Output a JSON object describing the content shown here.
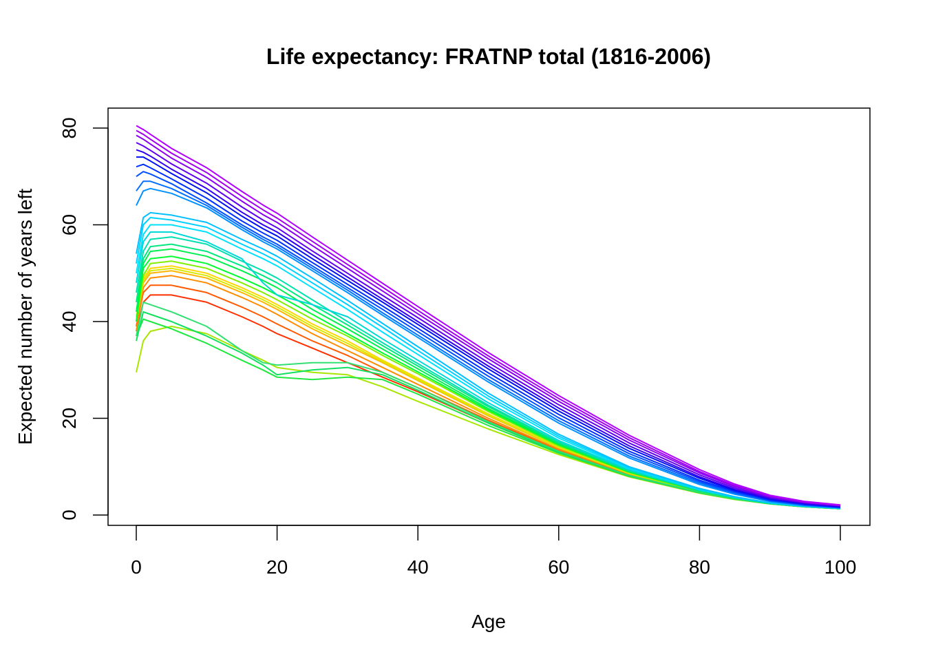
{
  "chart_data": {
    "type": "line",
    "title": "Life expectancy: FRATNP total (1816-2006)",
    "xlabel": "Age",
    "ylabel": "Expected number of years left",
    "xlim": [
      0,
      100
    ],
    "ylim": [
      0,
      80
    ],
    "x_ticks": [
      0,
      20,
      40,
      60,
      80,
      100
    ],
    "y_ticks": [
      0,
      20,
      40,
      60,
      80
    ],
    "x_tick_labels": [
      "0",
      "20",
      "40",
      "60",
      "80",
      "100"
    ],
    "y_tick_labels": [
      "0",
      "20",
      "40",
      "60",
      "80"
    ],
    "grid": false,
    "legend": "none",
    "x": [
      0,
      1,
      2,
      5,
      10,
      15,
      18,
      20,
      25,
      30,
      35,
      40,
      50,
      60,
      70,
      80,
      85,
      90,
      95,
      100
    ],
    "color_scale": "rainbow",
    "series": [
      {
        "color": "#ff3000",
        "values": [
          38,
          44,
          45.5,
          45.5,
          44,
          41,
          39,
          37.5,
          34.5,
          31.5,
          28.5,
          25.5,
          19,
          13,
          8.2,
          4.6,
          3.3,
          2.3,
          1.7,
          1.3
        ]
      },
      {
        "color": "#ff5a00",
        "values": [
          39,
          46,
          47.5,
          47.5,
          46,
          43,
          41,
          39.5,
          36,
          33,
          29.5,
          26.3,
          19.6,
          13.4,
          8.4,
          4.7,
          3.4,
          2.4,
          1.8,
          1.4
        ]
      },
      {
        "color": "#ff8c00",
        "values": [
          38,
          47,
          49,
          49.5,
          48,
          45,
          43,
          41.5,
          37.5,
          34,
          30.5,
          27,
          20,
          13.6,
          8.5,
          4.8,
          3.4,
          2.4,
          1.8,
          1.4
        ]
      },
      {
        "color": "#ffb400",
        "values": [
          40,
          48,
          50,
          50.5,
          49,
          46,
          44,
          42.5,
          38.5,
          35,
          31.5,
          27.8,
          20.5,
          13.9,
          8.6,
          4.8,
          3.4,
          2.4,
          1.8,
          1.4
        ]
      },
      {
        "color": "#ffd700",
        "values": [
          41,
          49,
          51,
          51.5,
          50,
          47,
          45,
          43.5,
          39.5,
          36,
          32,
          28.3,
          20.9,
          14.1,
          8.7,
          4.9,
          3.5,
          2.4,
          1.8,
          1.4
        ]
      },
      {
        "color": "#d8ea00",
        "values": [
          40,
          48.5,
          50.5,
          51,
          49.5,
          46.5,
          44.5,
          43,
          39,
          35.5,
          31.7,
          28,
          20.7,
          14,
          8.6,
          4.9,
          3.5,
          2.4,
          1.8,
          1.4
        ]
      },
      {
        "color": "#a8e600",
        "values": [
          29.5,
          36,
          38,
          39,
          37.5,
          34,
          32,
          30.5,
          29.5,
          29,
          26.5,
          23.5,
          17.8,
          12.5,
          7.9,
          4.5,
          3.2,
          2.3,
          1.7,
          1.3
        ]
      },
      {
        "color": "#80ee00",
        "values": [
          40,
          49.5,
          52,
          52.5,
          51,
          48,
          46,
          44.5,
          40.5,
          37,
          33,
          29.2,
          21.4,
          14.3,
          8.8,
          4.9,
          3.5,
          2.4,
          1.8,
          1.4
        ]
      },
      {
        "color": "#20e840",
        "values": [
          37,
          40.5,
          40,
          38.5,
          35.5,
          32,
          30,
          28.5,
          28,
          28.5,
          28,
          25,
          18.5,
          12.8,
          8,
          4.6,
          3.3,
          2.3,
          1.7,
          1.3
        ]
      },
      {
        "color": "#10e060",
        "values": [
          36,
          42,
          41.5,
          40,
          37,
          33.5,
          31,
          29,
          30,
          30.5,
          29,
          25.8,
          19,
          13,
          8.1,
          4.6,
          3.3,
          2.3,
          1.7,
          1.3
        ]
      },
      {
        "color": "#30e070",
        "values": [
          37,
          44,
          43.5,
          42,
          39,
          34,
          31.5,
          31,
          31.5,
          31.5,
          29.5,
          26.3,
          19.3,
          13.2,
          8.2,
          4.7,
          3.3,
          2.3,
          1.7,
          1.3
        ]
      },
      {
        "color": "#00ff30",
        "values": [
          40,
          51,
          53,
          53.5,
          52,
          49,
          47,
          45.5,
          41.5,
          37.5,
          33.5,
          29.6,
          21.7,
          14.5,
          8.9,
          5,
          3.5,
          2.4,
          1.8,
          1.4
        ]
      },
      {
        "color": "#00f050",
        "values": [
          42,
          52,
          54.5,
          55,
          53.5,
          50.5,
          48.5,
          47,
          42.5,
          38.5,
          34.3,
          30.2,
          22,
          14.7,
          9,
          5,
          3.5,
          2.4,
          1.8,
          1.4
        ]
      },
      {
        "color": "#00e880",
        "values": [
          44,
          53,
          55.5,
          56,
          54.5,
          51.5,
          49.5,
          48,
          43.5,
          39.3,
          35,
          30.8,
          22.4,
          14.9,
          9.1,
          5.1,
          3.6,
          2.4,
          1.8,
          1.4
        ]
      },
      {
        "color": "#00e0b0",
        "values": [
          46,
          54.5,
          57,
          57.5,
          56,
          52.5,
          50.5,
          49,
          44.5,
          40,
          35.6,
          31.3,
          22.7,
          15.1,
          9.2,
          5.1,
          3.6,
          2.5,
          1.8,
          1.4
        ]
      },
      {
        "color": "#00d8d8",
        "values": [
          48,
          56.5,
          58.5,
          58.5,
          56.5,
          53,
          48,
          45.5,
          43.5,
          41,
          36.4,
          32,
          23.2,
          15.4,
          9.4,
          5.2,
          3.6,
          2.5,
          1.8,
          1.4
        ]
      },
      {
        "color": "#00e0ff",
        "values": [
          50,
          58,
          60,
          60,
          58.5,
          55,
          53,
          51.5,
          47,
          42.5,
          37.8,
          33.2,
          24,
          15.9,
          9.6,
          5.3,
          3.7,
          2.5,
          1.8,
          1.4
        ]
      },
      {
        "color": "#00d0ff",
        "values": [
          52,
          60,
          61.5,
          61,
          59.5,
          56,
          54,
          52.5,
          48,
          43.5,
          38.8,
          34,
          24.6,
          16.3,
          9.8,
          5.4,
          3.7,
          2.5,
          1.8,
          1.4
        ]
      },
      {
        "color": "#00c0ff",
        "values": [
          54,
          61.5,
          62.5,
          62,
          60.5,
          57,
          55,
          53.5,
          49,
          44.4,
          39.6,
          34.8,
          25.2,
          16.7,
          10,
          5.5,
          3.8,
          2.5,
          1.8,
          1.4
        ]
      },
      {
        "color": "#0090ff",
        "values": [
          64,
          67,
          67.5,
          66.5,
          63.5,
          59,
          56.5,
          55,
          50.5,
          46,
          41.3,
          36.7,
          27.5,
          19,
          11.8,
          6.3,
          4.3,
          2.8,
          2,
          1.5
        ]
      },
      {
        "color": "#0070ff",
        "values": [
          67,
          69,
          69,
          67.5,
          64,
          59.5,
          57,
          55.5,
          51,
          46.5,
          41.8,
          37.2,
          28,
          19.5,
          12.2,
          6.6,
          4.5,
          2.9,
          2,
          1.5
        ]
      },
      {
        "color": "#0050ff",
        "values": [
          70,
          71,
          70.5,
          68.5,
          64.5,
          60,
          57.5,
          56,
          51.5,
          47,
          42.5,
          37.9,
          28.7,
          20.1,
          12.7,
          6.9,
          4.7,
          3,
          2.1,
          1.6
        ]
      },
      {
        "color": "#0030ff",
        "values": [
          72,
          72.5,
          71.8,
          69.5,
          65.5,
          60.8,
          58.3,
          56.8,
          52.2,
          47.7,
          43.2,
          38.6,
          29.4,
          20.8,
          13.2,
          7.2,
          4.9,
          3.1,
          2.2,
          1.6
        ]
      },
      {
        "color": "#0010f0",
        "values": [
          74,
          74,
          73.2,
          70.6,
          66.6,
          61.8,
          59.2,
          57.7,
          53,
          48.5,
          44,
          39.4,
          30.2,
          21.5,
          13.8,
          7.6,
          5.1,
          3.3,
          2.3,
          1.7
        ]
      },
      {
        "color": "#3000f0",
        "values": [
          75.5,
          75,
          74.2,
          71.5,
          67.5,
          62.6,
          60,
          58.5,
          53.8,
          49.2,
          44.6,
          40,
          30.8,
          22.1,
          14.3,
          7.9,
          5.3,
          3.4,
          2.4,
          1.8
        ]
      },
      {
        "color": "#6000f0",
        "values": [
          77,
          76.3,
          75.4,
          72.6,
          68.6,
          63.7,
          61,
          59.4,
          54.6,
          50,
          45.4,
          40.8,
          31.5,
          22.8,
          14.9,
          8.3,
          5.6,
          3.6,
          2.5,
          1.9
        ]
      },
      {
        "color": "#8800f0",
        "values": [
          78.5,
          77.7,
          76.7,
          73.8,
          69.8,
          64.9,
          62.1,
          60.5,
          55.7,
          51,
          46.3,
          41.6,
          32.3,
          23.5,
          15.5,
          8.7,
          5.9,
          3.8,
          2.6,
          2
        ]
      },
      {
        "color": "#a000f0",
        "values": [
          79.5,
          78.7,
          77.7,
          74.8,
          70.8,
          65.9,
          63.1,
          61.4,
          56.6,
          51.8,
          47.1,
          42.3,
          32.9,
          24.1,
          16,
          9,
          6.1,
          3.9,
          2.7,
          2
        ]
      },
      {
        "color": "#b000ff",
        "values": [
          80.5,
          79.7,
          78.7,
          75.8,
          71.8,
          66.9,
          64.1,
          62.4,
          57.5,
          52.7,
          47.9,
          43.1,
          33.6,
          24.7,
          16.5,
          9.4,
          6.4,
          4.1,
          2.8,
          2.1
        ]
      }
    ]
  }
}
